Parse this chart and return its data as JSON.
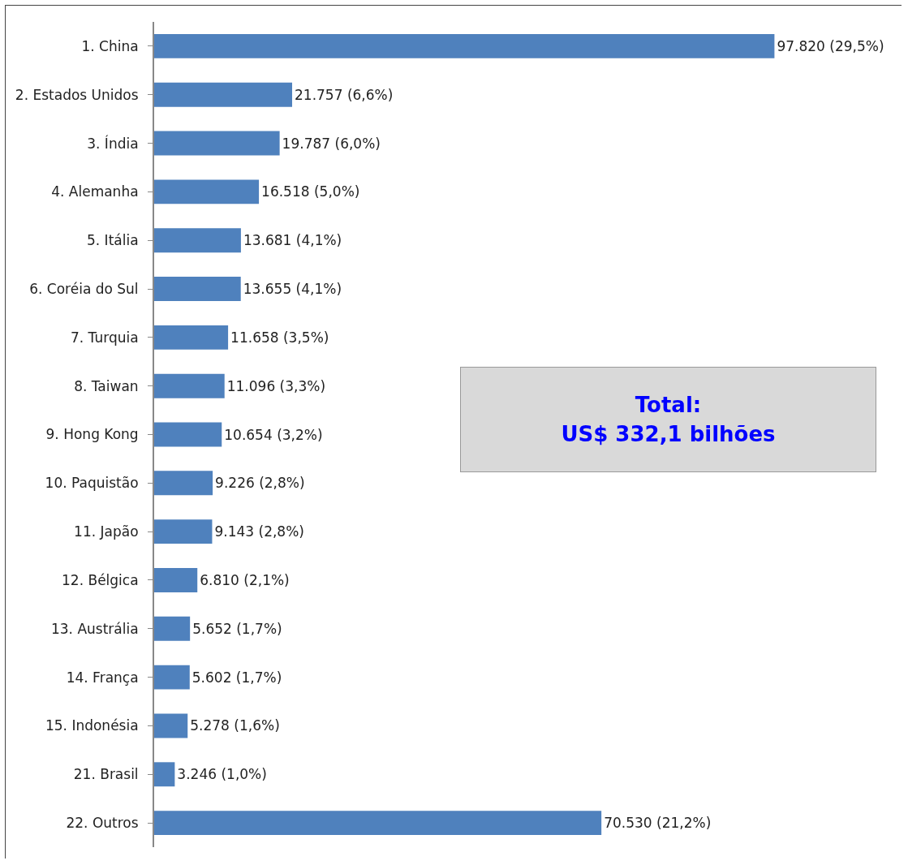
{
  "chart_data": {
    "type": "bar",
    "orientation": "horizontal",
    "categories": [
      "1. China",
      "2. Estados Unidos",
      "3. Índia",
      "4. Alemanha",
      "5. Itália",
      "6. Coréia do Sul",
      "7. Turquia",
      "8. Taiwan",
      "9. Hong Kong",
      "10. Paquistão",
      "11. Japão",
      "12. Bélgica",
      "13. Austrália",
      "14. França",
      "15. Indonésia",
      "21. Brasil",
      "22. Outros"
    ],
    "values": [
      97820,
      21757,
      19787,
      16518,
      13681,
      13655,
      11658,
      11096,
      10654,
      9226,
      9143,
      6810,
      5652,
      5602,
      5278,
      3246,
      70530
    ],
    "value_labels": [
      "97.820 (29,5%)",
      "21.757 (6,6%)",
      "19.787 (6,0%)",
      "16.518 (5,0%)",
      "13.681 (4,1%)",
      "13.655 (4,1%)",
      "11.658 (3,5%)",
      "11.096 (3,3%)",
      "10.654 (3,2%)",
      "9.226 (2,8%)",
      "9.143 (2,8%)",
      "6.810 (2,1%)",
      "5.652 (1,7%)",
      "5.602 (1,7%)",
      "5.278 (1,6%)",
      "3.246 (1,0%)",
      "70.530 (21,2%)"
    ],
    "color": "#4f81bd",
    "annotations": [
      "Total:\nUS$ 332,1 bilhões"
    ],
    "grid": false
  }
}
